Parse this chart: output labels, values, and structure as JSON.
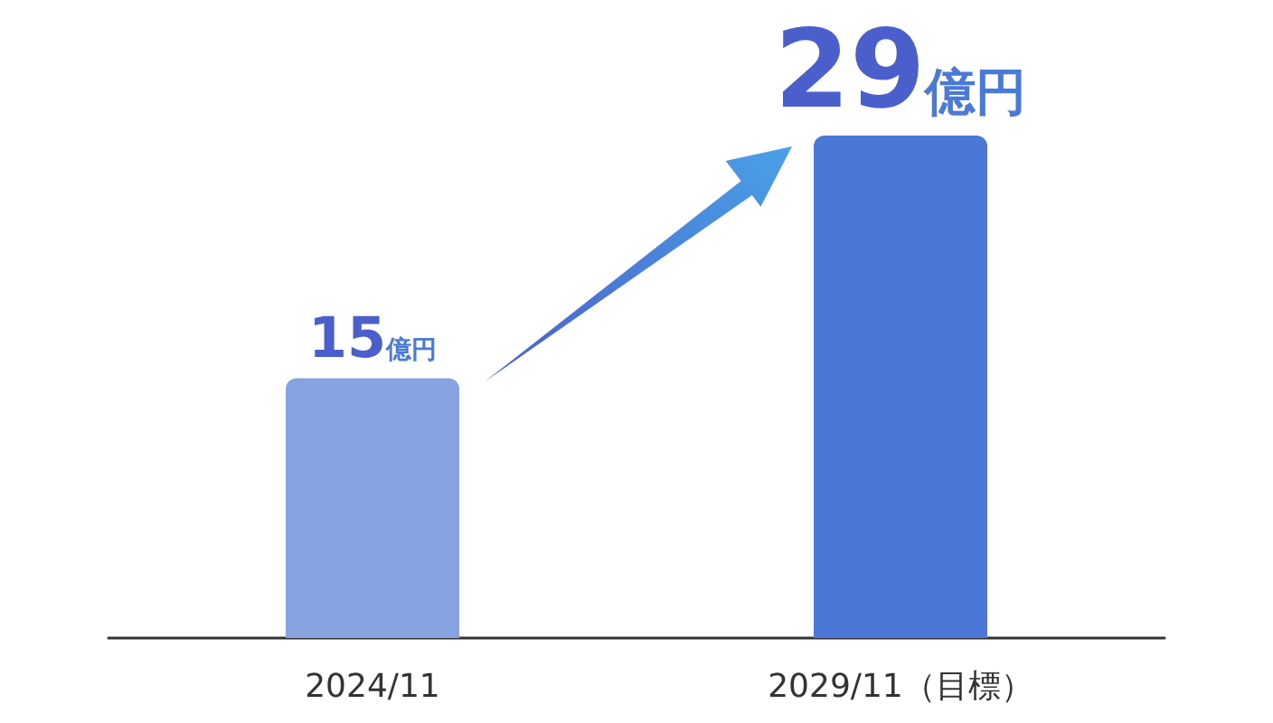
{
  "chart_data": {
    "type": "bar",
    "categories": [
      "2024/11",
      "2029/11（目標）"
    ],
    "values": [
      15,
      29
    ],
    "colors": [
      "#86a2e0",
      "#4b78d6"
    ],
    "value_labels": [
      "15億円",
      "29億円"
    ],
    "tick_labels": "x"
  }
}
